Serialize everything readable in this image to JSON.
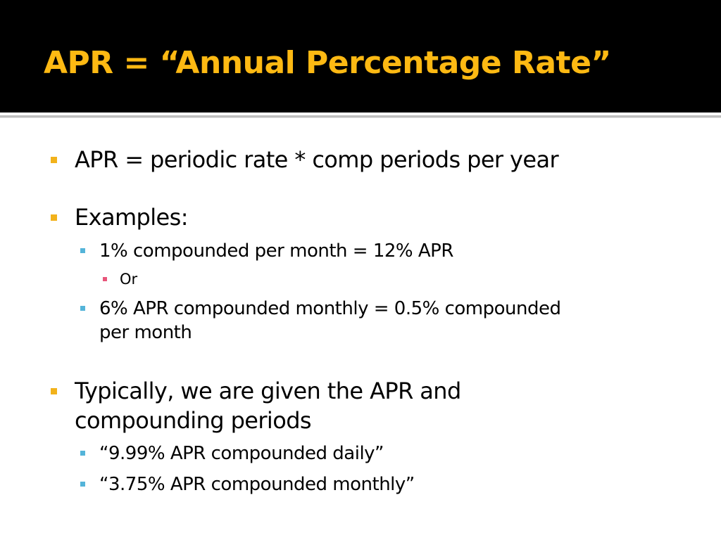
{
  "slide": {
    "title": "APR = “Annual Percentage Rate”",
    "colors": {
      "title_bar": "#000000",
      "title_text": "#fdb913",
      "level1_bullet": "#f2b21b",
      "level2_bullet": "#54b4d9",
      "level3_bullet": "#e8567a",
      "body_text": "#000000"
    },
    "bullets": {
      "b1": "APR = periodic rate * comp periods per year",
      "b2": "Examples:",
      "b2_1": "1% compounded per month = 12% APR",
      "b2_1_1": "Or",
      "b2_2_line1": "6% APR compounded monthly = 0.5% compounded",
      "b2_2_line2": "per month",
      "b3_line1": "Typically, we are given the APR and",
      "b3_line2": "compounding periods",
      "b3_1": "“9.99% APR compounded daily”",
      "b3_2": "“3.75% APR compounded monthly”"
    }
  }
}
